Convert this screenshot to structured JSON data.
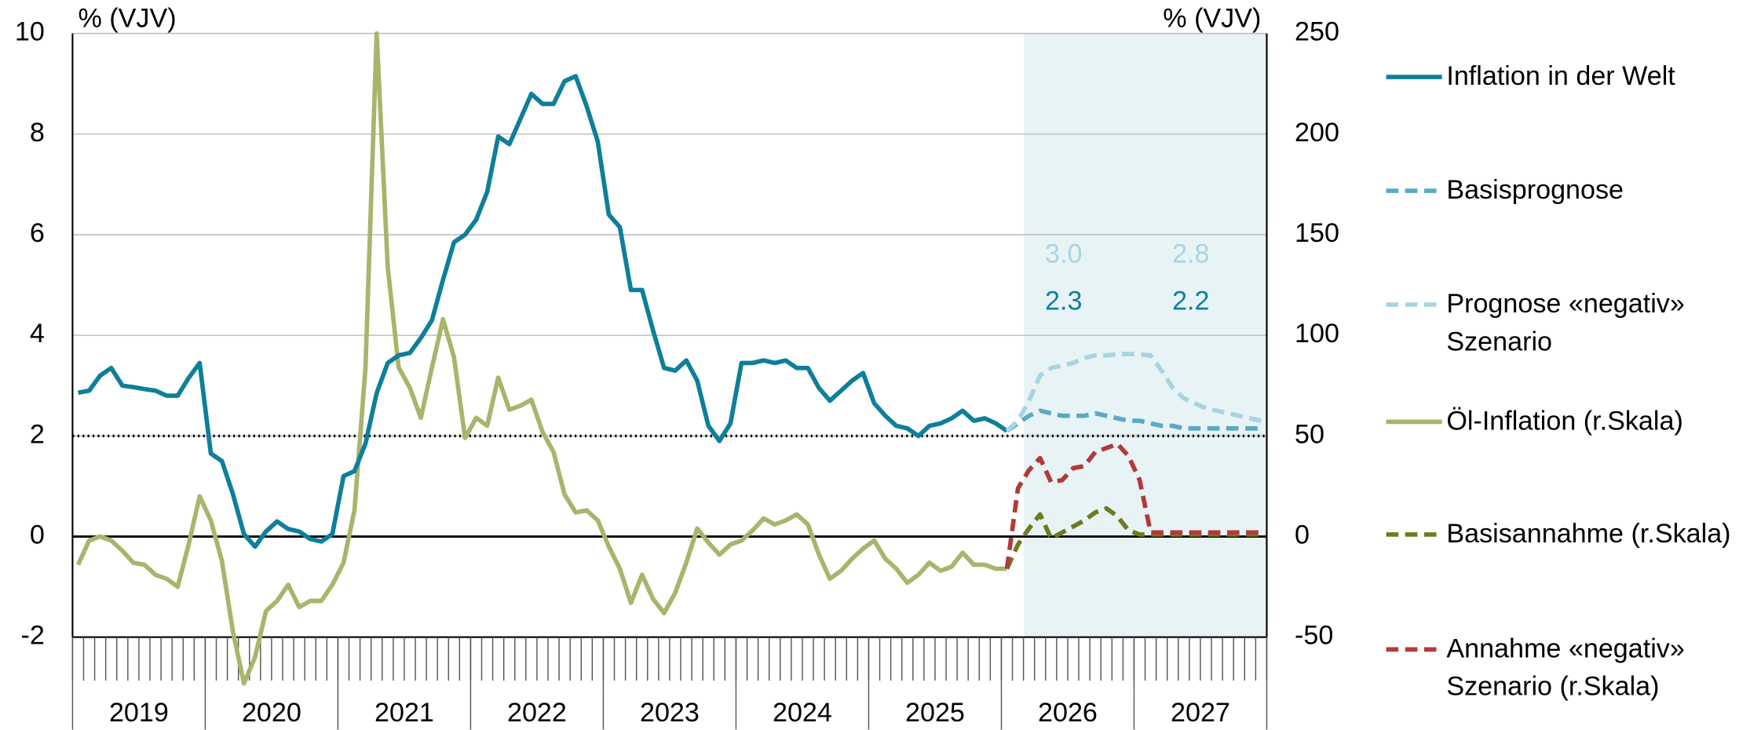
{
  "chart_data": {
    "type": "line",
    "y_label": "% (VJV)",
    "y2_label": "% (VJV)",
    "ylim": [
      -2,
      10
    ],
    "yticks": [
      -2,
      0,
      2,
      4,
      6,
      8,
      10
    ],
    "y2lim": [
      -50,
      250
    ],
    "y2ticks": [
      -50,
      0,
      50,
      100,
      150,
      200,
      250
    ],
    "xlim": [
      2019,
      2028
    ],
    "xticks": [
      2019,
      2020,
      2021,
      2022,
      2023,
      2024,
      2025,
      2026,
      2027,
      2028
    ],
    "year_labels": [
      "2019",
      "2020",
      "2021",
      "2022",
      "2023",
      "2024",
      "2025",
      "2026",
      "2027"
    ],
    "grid": true,
    "hline": 2,
    "shaded_x": [
      2026.17,
      2028
    ],
    "annotations": [
      {
        "text": "3.0",
        "color": "#a8d4e2"
      },
      {
        "text": "2.8",
        "color": "#a8d4e2"
      },
      {
        "text": "2.3",
        "color": "#0e7f9a"
      },
      {
        "text": "2.2",
        "color": "#0e7f9a"
      }
    ],
    "x": [
      2019.042,
      2019.125,
      2019.208,
      2019.292,
      2019.375,
      2019.458,
      2019.542,
      2019.625,
      2019.708,
      2019.792,
      2019.875,
      2019.958,
      2020.042,
      2020.125,
      2020.208,
      2020.292,
      2020.375,
      2020.458,
      2020.542,
      2020.625,
      2020.708,
      2020.792,
      2020.875,
      2020.958,
      2021.042,
      2021.125,
      2021.208,
      2021.292,
      2021.375,
      2021.458,
      2021.542,
      2021.625,
      2021.708,
      2021.792,
      2021.875,
      2021.958,
      2022.042,
      2022.125,
      2022.208,
      2022.292,
      2022.375,
      2022.458,
      2022.542,
      2022.625,
      2022.708,
      2022.792,
      2022.875,
      2022.958,
      2023.042,
      2023.125,
      2023.208,
      2023.292,
      2023.375,
      2023.458,
      2023.542,
      2023.625,
      2023.708,
      2023.792,
      2023.875,
      2023.958,
      2024.042,
      2024.125,
      2024.208,
      2024.292,
      2024.375,
      2024.458,
      2024.542,
      2024.625,
      2024.708,
      2024.792,
      2024.875,
      2024.958,
      2025.042,
      2025.125,
      2025.208,
      2025.292,
      2025.375,
      2025.458,
      2025.542,
      2025.625,
      2025.708,
      2025.792,
      2025.875,
      2025.958,
      2026.042,
      2026.125,
      2026.208,
      2026.292,
      2026.375,
      2026.458,
      2026.542,
      2026.625,
      2026.708,
      2026.792,
      2026.875,
      2026.958,
      2027.042,
      2027.125,
      2027.208,
      2027.292,
      2027.375,
      2027.458,
      2027.542,
      2027.625,
      2027.708,
      2027.792,
      2027.875,
      2027.958
    ],
    "series": [
      {
        "name": "Inflation in der Welt",
        "color": "#0e7f9a",
        "dashed": false,
        "axis": "y",
        "values": [
          2.86,
          2.9,
          3.2,
          3.35,
          3.0,
          2.97,
          2.93,
          2.9,
          2.8,
          2.8,
          3.15,
          3.45,
          1.65,
          1.5,
          0.85,
          0.05,
          -0.2,
          0.1,
          0.3,
          0.15,
          0.1,
          -0.05,
          -0.1,
          0.05,
          1.2,
          1.3,
          1.85,
          2.85,
          3.45,
          3.6,
          3.65,
          3.95,
          4.3,
          5.1,
          5.85,
          6.0,
          6.3,
          6.85,
          7.95,
          7.8,
          8.3,
          8.8,
          8.6,
          8.6,
          9.05,
          9.15,
          8.55,
          7.85,
          6.4,
          6.15,
          4.9,
          4.9,
          4.1,
          3.35,
          3.3,
          3.5,
          3.1,
          2.2,
          1.9,
          2.25,
          3.45,
          3.45,
          3.5,
          3.45,
          3.5,
          3.35,
          3.35,
          2.95,
          2.7,
          2.9,
          3.1,
          3.25,
          2.65,
          2.4,
          2.2,
          2.15,
          2.0,
          2.2,
          2.25,
          2.35,
          2.5,
          2.3,
          2.35,
          2.25,
          2.1,
          null,
          null,
          null,
          null,
          null,
          null,
          null,
          null,
          null,
          null,
          null,
          null,
          null,
          null,
          null,
          null,
          null,
          null,
          null,
          null,
          null,
          null,
          null
        ]
      },
      {
        "name": "Basisprognose",
        "color": "#5aa9c4",
        "dashed": true,
        "axis": "y",
        "values": [
          null,
          null,
          null,
          null,
          null,
          null,
          null,
          null,
          null,
          null,
          null,
          null,
          null,
          null,
          null,
          null,
          null,
          null,
          null,
          null,
          null,
          null,
          null,
          null,
          null,
          null,
          null,
          null,
          null,
          null,
          null,
          null,
          null,
          null,
          null,
          null,
          null,
          null,
          null,
          null,
          null,
          null,
          null,
          null,
          null,
          null,
          null,
          null,
          null,
          null,
          null,
          null,
          null,
          null,
          null,
          null,
          null,
          null,
          null,
          null,
          null,
          null,
          null,
          null,
          null,
          null,
          null,
          null,
          null,
          null,
          null,
          null,
          null,
          null,
          null,
          null,
          null,
          null,
          null,
          null,
          null,
          null,
          null,
          null,
          2.1,
          2.25,
          2.4,
          2.5,
          2.45,
          2.4,
          2.4,
          2.4,
          2.45,
          2.4,
          2.35,
          2.3,
          2.3,
          2.25,
          2.2,
          2.2,
          2.15,
          2.15,
          2.15,
          2.15,
          2.15,
          2.15,
          2.15,
          2.15
        ]
      },
      {
        "name": "Prognose «negativ» Szenario",
        "color": "#a8d4e2",
        "dashed": true,
        "axis": "y",
        "values": [
          null,
          null,
          null,
          null,
          null,
          null,
          null,
          null,
          null,
          null,
          null,
          null,
          null,
          null,
          null,
          null,
          null,
          null,
          null,
          null,
          null,
          null,
          null,
          null,
          null,
          null,
          null,
          null,
          null,
          null,
          null,
          null,
          null,
          null,
          null,
          null,
          null,
          null,
          null,
          null,
          null,
          null,
          null,
          null,
          null,
          null,
          null,
          null,
          null,
          null,
          null,
          null,
          null,
          null,
          null,
          null,
          null,
          null,
          null,
          null,
          null,
          null,
          null,
          null,
          null,
          null,
          null,
          null,
          null,
          null,
          null,
          null,
          null,
          null,
          null,
          null,
          null,
          null,
          null,
          null,
          null,
          null,
          null,
          null,
          2.1,
          2.3,
          2.7,
          3.2,
          3.35,
          3.4,
          3.45,
          3.55,
          3.6,
          3.6,
          3.62,
          3.63,
          3.62,
          3.6,
          3.3,
          2.95,
          2.75,
          2.65,
          2.55,
          2.5,
          2.45,
          2.4,
          2.35,
          2.3
        ]
      },
      {
        "name": "Öl-Inflation (r.Skala)",
        "color": "#a9b46c",
        "dashed": false,
        "axis": "y2",
        "values": [
          -14,
          -2,
          0,
          -2,
          -7,
          -13,
          -14,
          -19,
          -21,
          -25,
          -4,
          20,
          8,
          -12,
          -47,
          -73,
          -60,
          -37,
          -32,
          -24,
          -35,
          -32,
          -32,
          -24,
          -13,
          13,
          84,
          250,
          134,
          84,
          74,
          59,
          84,
          108,
          89,
          49,
          59,
          55,
          79,
          63,
          65,
          68,
          52,
          42,
          21,
          12,
          13,
          8,
          -5,
          -16,
          -33,
          -19,
          -31,
          -38,
          -28,
          -13,
          4,
          -3,
          -9,
          -4,
          -2,
          3,
          9,
          6,
          8,
          11,
          6,
          -9,
          -21,
          -17,
          -11,
          -6,
          -2,
          -11,
          -16,
          -23,
          -19,
          -13,
          -17,
          -15,
          -8,
          -14,
          -14,
          -16,
          -16,
          null,
          null,
          null,
          null,
          null,
          null,
          null,
          null,
          null,
          null,
          null,
          null,
          null,
          null,
          null,
          null,
          null,
          null,
          null,
          null,
          null,
          null,
          null
        ]
      },
      {
        "name": "Basisannahme (r.Skala)",
        "color": "#6e7b1f",
        "dashed": true,
        "axis": "y2",
        "values": [
          null,
          null,
          null,
          null,
          null,
          null,
          null,
          null,
          null,
          null,
          null,
          null,
          null,
          null,
          null,
          null,
          null,
          null,
          null,
          null,
          null,
          null,
          null,
          null,
          null,
          null,
          null,
          null,
          null,
          null,
          null,
          null,
          null,
          null,
          null,
          null,
          null,
          null,
          null,
          null,
          null,
          null,
          null,
          null,
          null,
          null,
          null,
          null,
          null,
          null,
          null,
          null,
          null,
          null,
          null,
          null,
          null,
          null,
          null,
          null,
          null,
          null,
          null,
          null,
          null,
          null,
          null,
          null,
          null,
          null,
          null,
          null,
          null,
          null,
          null,
          null,
          null,
          null,
          null,
          null,
          null,
          null,
          null,
          null,
          -16,
          -4,
          4,
          11,
          -1,
          2,
          5,
          8,
          12,
          14,
          10,
          3,
          1,
          1,
          1,
          1,
          1,
          1,
          1,
          1,
          1,
          1,
          1,
          1
        ]
      },
      {
        "name": "Annahme «negativ» Szenario (r.Skala)",
        "color": "#b23a3a",
        "dashed": true,
        "axis": "y2",
        "values": [
          null,
          null,
          null,
          null,
          null,
          null,
          null,
          null,
          null,
          null,
          null,
          null,
          null,
          null,
          null,
          null,
          null,
          null,
          null,
          null,
          null,
          null,
          null,
          null,
          null,
          null,
          null,
          null,
          null,
          null,
          null,
          null,
          null,
          null,
          null,
          null,
          null,
          null,
          null,
          null,
          null,
          null,
          null,
          null,
          null,
          null,
          null,
          null,
          null,
          null,
          null,
          null,
          null,
          null,
          null,
          null,
          null,
          null,
          null,
          null,
          null,
          null,
          null,
          null,
          null,
          null,
          null,
          null,
          null,
          null,
          null,
          null,
          null,
          null,
          null,
          null,
          null,
          null,
          null,
          null,
          null,
          null,
          null,
          null,
          -16,
          24,
          33,
          39,
          27,
          28,
          34,
          35,
          42,
          44,
          46,
          40,
          28,
          2,
          2,
          2,
          2,
          2,
          2,
          2,
          2,
          2,
          2,
          2
        ]
      }
    ]
  }
}
